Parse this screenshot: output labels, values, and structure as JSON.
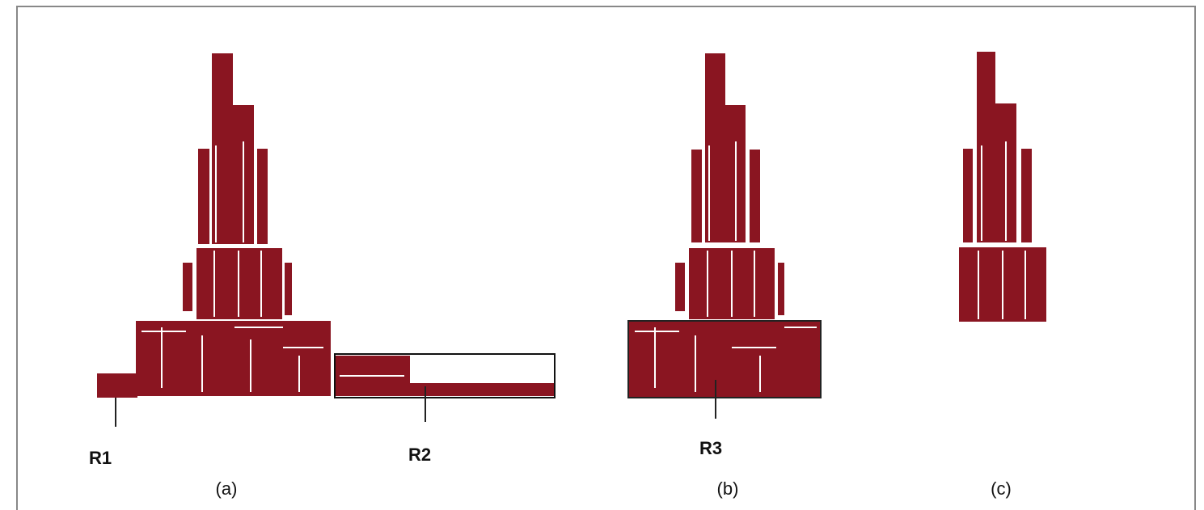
{
  "labels": {
    "r1": "R1",
    "r2": "R2",
    "r3": "R3"
  },
  "captions": {
    "a": "(a)",
    "b": "(b)",
    "c": "(c)"
  }
}
